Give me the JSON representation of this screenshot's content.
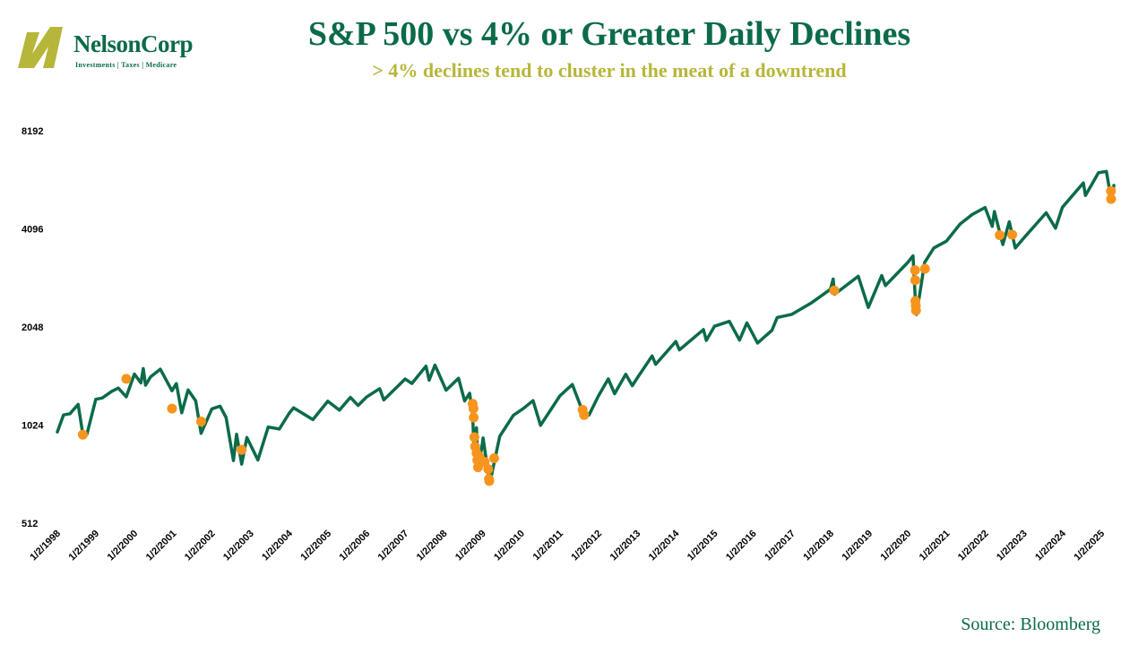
{
  "logo": {
    "name": "NelsonCorp",
    "tagline": "Investments | Taxes | Medicare",
    "colors": {
      "mark": "#b6b63a",
      "text": "#0b6b48"
    }
  },
  "source": "Source: Bloomberg",
  "chart_data": {
    "type": "line",
    "title": "S&P 500 vs 4% or Greater Daily Declines",
    "subtitle": "> 4% declines tend to cluster in the meat of a downtrend",
    "xlabel": "",
    "ylabel": "",
    "y_scale": "log2",
    "ylim": [
      512,
      8192
    ],
    "y_ticks": [
      512,
      1024,
      2048,
      4096,
      8192
    ],
    "x_ticks": [
      "1/2/1998",
      "1/2/1999",
      "1/2/2000",
      "1/2/2001",
      "1/2/2002",
      "1/2/2003",
      "1/2/2004",
      "1/2/2005",
      "1/2/2006",
      "1/2/2007",
      "1/2/2008",
      "1/2/2009",
      "1/2/2010",
      "1/2/2011",
      "1/2/2012",
      "1/2/2013",
      "1/2/2014",
      "1/2/2015",
      "1/2/2016",
      "1/2/2017",
      "1/2/2018",
      "1/2/2019",
      "1/2/2020",
      "1/2/2021",
      "1/2/2022",
      "1/2/2023",
      "1/2/2024",
      "1/2/2025"
    ],
    "xlim": [
      "1998-01-02",
      "2025-04-30"
    ],
    "grid": false,
    "legend": "none",
    "colors": {
      "line": "#0b6b48",
      "points": "#f7941d"
    },
    "series": [
      {
        "kind": "line",
        "points": [
          [
            "1998-01-02",
            975
          ],
          [
            "1998-03-01",
            1100
          ],
          [
            "1998-05-01",
            1110
          ],
          [
            "1998-07-17",
            1185
          ],
          [
            "1998-08-31",
            957
          ],
          [
            "1998-10-08",
            960
          ],
          [
            "1998-12-31",
            1229
          ],
          [
            "1999-03-01",
            1240
          ],
          [
            "1999-06-01",
            1300
          ],
          [
            "1999-08-01",
            1330
          ],
          [
            "1999-10-15",
            1250
          ],
          [
            "1999-12-31",
            1469
          ],
          [
            "2000-03-01",
            1380
          ],
          [
            "2000-03-24",
            1527
          ],
          [
            "2000-04-14",
            1357
          ],
          [
            "2000-06-01",
            1440
          ],
          [
            "2000-09-01",
            1520
          ],
          [
            "2000-12-20",
            1305
          ],
          [
            "2001-01-30",
            1373
          ],
          [
            "2001-03-22",
            1117
          ],
          [
            "2001-05-21",
            1312
          ],
          [
            "2001-08-01",
            1215
          ],
          [
            "2001-09-21",
            966
          ],
          [
            "2001-12-31",
            1148
          ],
          [
            "2002-03-19",
            1170
          ],
          [
            "2002-05-15",
            1080
          ],
          [
            "2002-07-23",
            797
          ],
          [
            "2002-08-22",
            960
          ],
          [
            "2002-10-09",
            777
          ],
          [
            "2002-11-27",
            938
          ],
          [
            "2003-03-11",
            800
          ],
          [
            "2003-06-17",
            1010
          ],
          [
            "2003-09-30",
            996
          ],
          [
            "2003-12-31",
            1112
          ],
          [
            "2004-02-11",
            1157
          ],
          [
            "2004-08-12",
            1064
          ],
          [
            "2004-12-31",
            1212
          ],
          [
            "2005-04-20",
            1138
          ],
          [
            "2005-08-01",
            1245
          ],
          [
            "2005-10-13",
            1176
          ],
          [
            "2005-12-31",
            1248
          ],
          [
            "2006-05-05",
            1325
          ],
          [
            "2006-06-13",
            1223
          ],
          [
            "2006-12-31",
            1418
          ],
          [
            "2007-03-05",
            1374
          ],
          [
            "2007-07-16",
            1553
          ],
          [
            "2007-08-15",
            1406
          ],
          [
            "2007-10-09",
            1565
          ],
          [
            "2008-01-22",
            1310
          ],
          [
            "2008-05-19",
            1426
          ],
          [
            "2008-07-15",
            1214
          ],
          [
            "2008-09-01",
            1282
          ],
          [
            "2008-09-29",
            1106
          ],
          [
            "2008-10-10",
            899
          ],
          [
            "2008-11-04",
            1005
          ],
          [
            "2008-11-20",
            752
          ],
          [
            "2008-12-31",
            903
          ],
          [
            "2009-01-06",
            935
          ],
          [
            "2009-03-09",
            677
          ],
          [
            "2009-06-12",
            946
          ],
          [
            "2009-10-19",
            1097
          ],
          [
            "2010-01-19",
            1150
          ],
          [
            "2010-04-23",
            1217
          ],
          [
            "2010-07-02",
            1022
          ],
          [
            "2010-12-31",
            1258
          ],
          [
            "2011-04-29",
            1364
          ],
          [
            "2011-08-08",
            1119
          ],
          [
            "2011-10-03",
            1099
          ],
          [
            "2011-12-31",
            1258
          ],
          [
            "2012-04-02",
            1419
          ],
          [
            "2012-06-01",
            1278
          ],
          [
            "2012-09-14",
            1466
          ],
          [
            "2012-11-15",
            1353
          ],
          [
            "2012-12-31",
            1426
          ],
          [
            "2013-05-21",
            1669
          ],
          [
            "2013-06-24",
            1573
          ],
          [
            "2013-12-31",
            1848
          ],
          [
            "2014-02-03",
            1742
          ],
          [
            "2014-09-18",
            2011
          ],
          [
            "2014-10-15",
            1862
          ],
          [
            "2014-12-31",
            2059
          ],
          [
            "2015-05-21",
            2131
          ],
          [
            "2015-08-25",
            1867
          ],
          [
            "2015-11-03",
            2109
          ],
          [
            "2016-02-11",
            1829
          ],
          [
            "2016-06-27",
            2000
          ],
          [
            "2016-08-15",
            2190
          ],
          [
            "2016-12-31",
            2239
          ],
          [
            "2017-06-30",
            2423
          ],
          [
            "2017-12-31",
            2674
          ],
          [
            "2018-01-26",
            2873
          ],
          [
            "2018-02-08",
            2581
          ],
          [
            "2018-09-20",
            2931
          ],
          [
            "2018-12-24",
            2351
          ],
          [
            "2019-04-30",
            2946
          ],
          [
            "2019-06-03",
            2744
          ],
          [
            "2019-12-31",
            3231
          ],
          [
            "2020-02-19",
            3386
          ],
          [
            "2020-03-12",
            2480
          ],
          [
            "2020-03-23",
            2237
          ],
          [
            "2020-06-08",
            3232
          ],
          [
            "2020-09-02",
            3580
          ],
          [
            "2020-12-31",
            3756
          ],
          [
            "2021-05-07",
            4232
          ],
          [
            "2021-09-02",
            4537
          ],
          [
            "2021-12-31",
            4766
          ],
          [
            "2022-03-08",
            4170
          ],
          [
            "2022-03-29",
            4631
          ],
          [
            "2022-06-16",
            3667
          ],
          [
            "2022-08-16",
            4305
          ],
          [
            "2022-10-12",
            3577
          ],
          [
            "2022-12-31",
            3840
          ],
          [
            "2023-07-31",
            4589
          ],
          [
            "2023-10-27",
            4117
          ],
          [
            "2023-12-31",
            4770
          ],
          [
            "2024-07-16",
            5667
          ],
          [
            "2024-08-05",
            5186
          ],
          [
            "2024-12-06",
            6090
          ],
          [
            "2025-02-19",
            6144
          ],
          [
            "2025-04-08",
            4983
          ],
          [
            "2025-04-30",
            5569
          ]
        ]
      },
      {
        "kind": "scatter",
        "name": "4% or greater daily declines",
        "points": [
          [
            "1998-08-31",
            957
          ],
          [
            "1999-10-15",
            1420
          ],
          [
            "2000-12-20",
            1150
          ],
          [
            "2001-09-21",
            1050
          ],
          [
            "2002-10-09",
            860
          ],
          [
            "2008-09-29",
            1190
          ],
          [
            "2008-10-07",
            1150
          ],
          [
            "2008-10-09",
            1080
          ],
          [
            "2008-10-15",
            940
          ],
          [
            "2008-10-22",
            880
          ],
          [
            "2008-11-05",
            840
          ],
          [
            "2008-11-12",
            800
          ],
          [
            "2008-11-19",
            760
          ],
          [
            "2008-12-01",
            820
          ],
          [
            "2009-01-20",
            790
          ],
          [
            "2009-02-23",
            750
          ],
          [
            "2009-03-02",
            700
          ],
          [
            "2009-03-05",
            690
          ],
          [
            "2009-04-20",
            810
          ],
          [
            "2011-08-04",
            1140
          ],
          [
            "2011-08-18",
            1100
          ],
          [
            "2018-02-05",
            2650
          ],
          [
            "2020-03-09",
            3060
          ],
          [
            "2020-03-11",
            2850
          ],
          [
            "2020-03-12",
            2460
          ],
          [
            "2020-03-16",
            2380
          ],
          [
            "2020-03-18",
            2300
          ],
          [
            "2020-06-11",
            3090
          ],
          [
            "2022-05-18",
            3920
          ],
          [
            "2022-09-13",
            3930
          ],
          [
            "2025-04-03",
            5350
          ],
          [
            "2025-04-04",
            5060
          ]
        ]
      }
    ]
  }
}
